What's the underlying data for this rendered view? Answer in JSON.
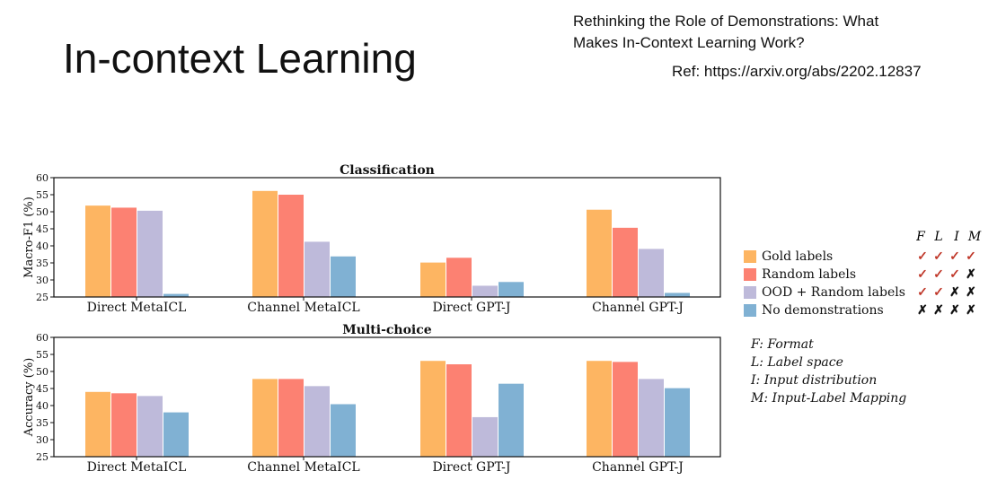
{
  "slide": {
    "title": "In-context Learning",
    "paper_title": "Rethinking the Role of Demonstrations: What\nMakes In-Context Learning Work?",
    "reference": "Ref: https://arxiv.org/abs/2202.12837"
  },
  "chart_data": [
    {
      "type": "bar",
      "title": "Classification",
      "ylabel": "Macro-F1 (%)",
      "ylim": [
        25,
        60
      ],
      "yticks": [
        "25",
        "30",
        "35",
        "40",
        "45",
        "50",
        "55",
        "60"
      ],
      "categories": [
        "Direct MetaICL",
        "Channel MetaICL",
        "Direct GPT-J",
        "Channel GPT-J"
      ],
      "series": [
        {
          "name": "Gold labels",
          "values": [
            51.8,
            56.1,
            35.1,
            50.6
          ]
        },
        {
          "name": "Random labels",
          "values": [
            51.2,
            55.0,
            36.5,
            45.3
          ]
        },
        {
          "name": "OOD + Random labels",
          "values": [
            50.3,
            41.2,
            28.3,
            39.1
          ]
        },
        {
          "name": "No demonstrations",
          "values": [
            25.9,
            36.9,
            29.4,
            26.2
          ]
        }
      ]
    },
    {
      "type": "bar",
      "title": "Multi-choice",
      "ylabel": "Accuracy (%)",
      "ylim": [
        25,
        60
      ],
      "yticks": [
        "25",
        "30",
        "35",
        "40",
        "45",
        "50",
        "55",
        "60"
      ],
      "categories": [
        "Direct MetaICL",
        "Channel MetaICL",
        "Direct GPT-J",
        "Channel GPT-J"
      ],
      "series": [
        {
          "name": "Gold labels",
          "values": [
            44.0,
            47.8,
            53.1,
            53.1
          ]
        },
        {
          "name": "Random labels",
          "values": [
            43.6,
            47.8,
            52.1,
            52.8
          ]
        },
        {
          "name": "OOD + Random labels",
          "values": [
            42.8,
            45.7,
            36.6,
            47.8
          ]
        },
        {
          "name": "No demonstrations",
          "values": [
            38.0,
            40.4,
            46.4,
            45.1
          ]
        }
      ]
    }
  ],
  "colors": [
    "#fdb562",
    "#fc8172",
    "#bebada",
    "#80b1d3"
  ],
  "legend": {
    "headers": [
      "F",
      "L",
      "I",
      "M"
    ],
    "items": [
      {
        "label": "Gold labels",
        "marks": [
          "✓",
          "✓",
          "✓",
          "✓"
        ]
      },
      {
        "label": "Random labels",
        "marks": [
          "✓",
          "✓",
          "✓",
          "✗"
        ]
      },
      {
        "label": "OOD + Random labels",
        "marks": [
          "✓",
          "✓",
          "✗",
          "✗"
        ]
      },
      {
        "label": "No demonstrations",
        "marks": [
          "✗",
          "✗",
          "✗",
          "✗"
        ]
      }
    ],
    "check_color": "#c0392b",
    "cross_color": "#111111"
  },
  "key": [
    "F: Format",
    "L: Label space",
    "I: Input distribution",
    "M: Input-Label Mapping"
  ]
}
